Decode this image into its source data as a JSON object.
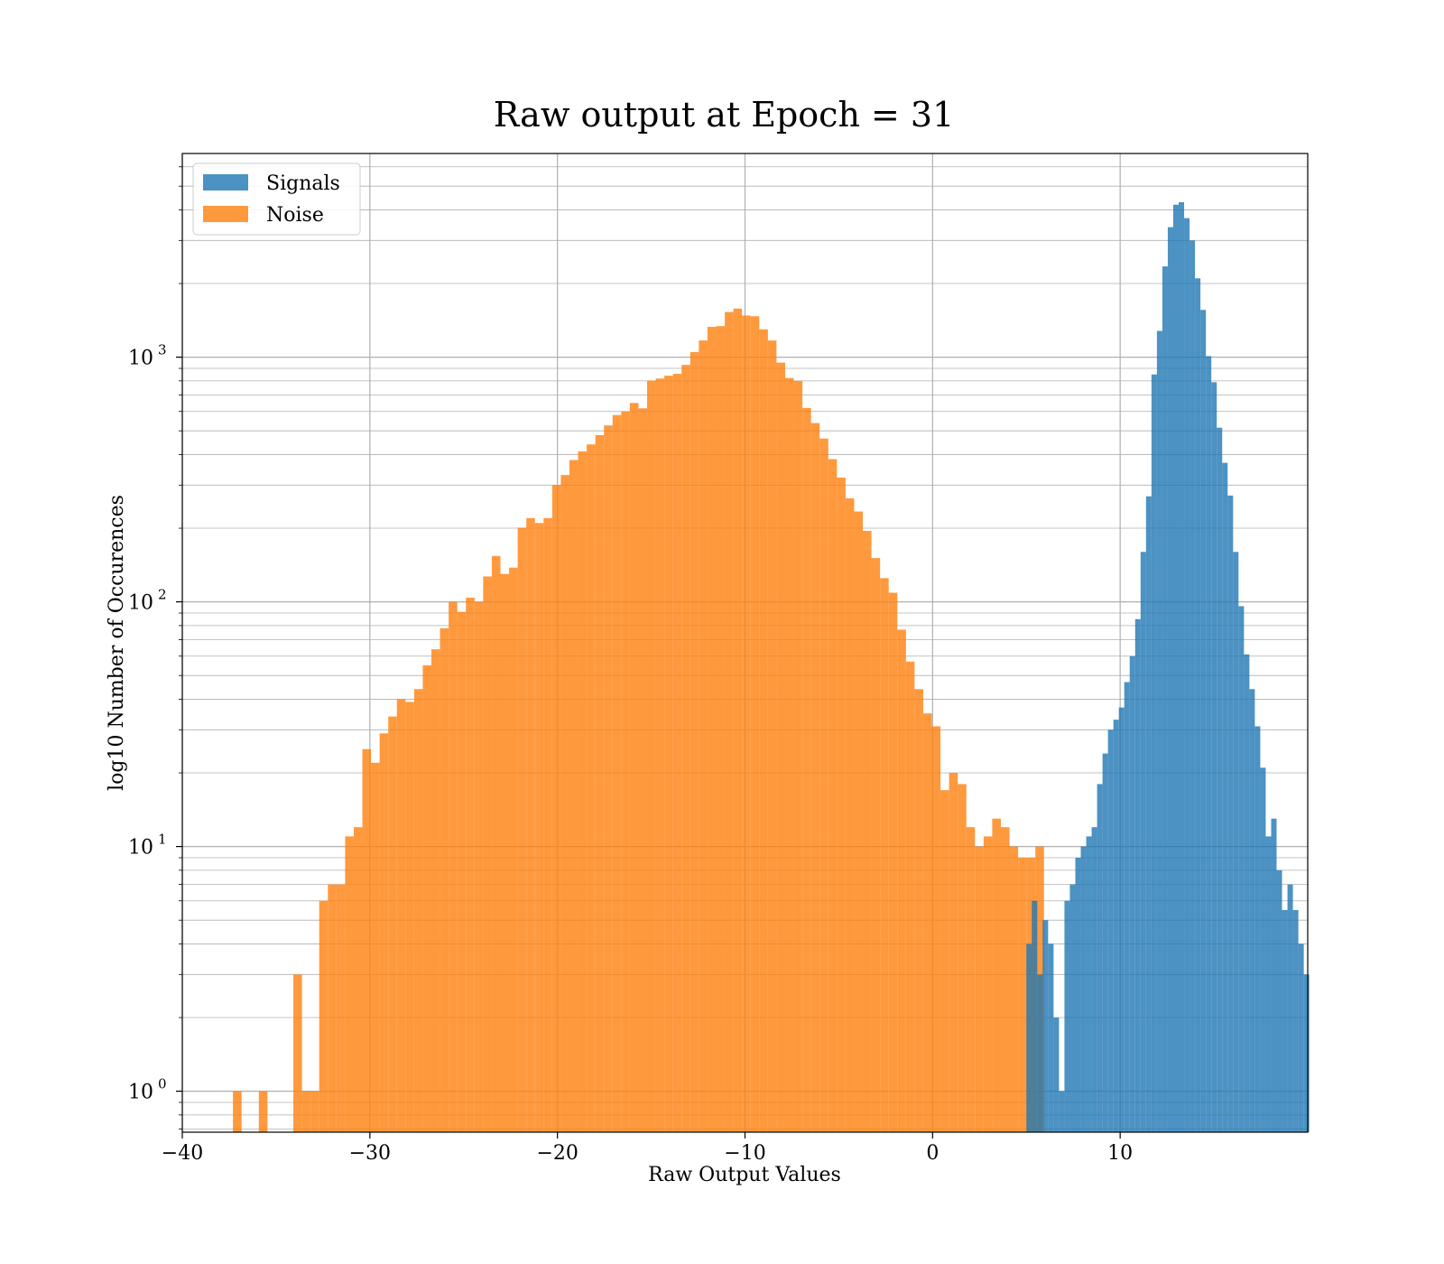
{
  "chart_data": {
    "type": "histogram",
    "title": "Raw output at Epoch = 31",
    "xlabel": "Raw Output Values",
    "ylabel": "log10 Number of Occurences",
    "xlim": [
      -40,
      20
    ],
    "ylim": [
      0.68,
      6800
    ],
    "yscale": "log",
    "grid": true,
    "legend_position": "top-left",
    "x_ticks": [
      -40,
      -30,
      -20,
      -10,
      0,
      10
    ],
    "x_tick_labels": [
      "−40",
      "−30",
      "−20",
      "−10",
      "0",
      "10"
    ],
    "y_ticks": [
      {
        "value": 1,
        "base": "10",
        "exp": "0"
      },
      {
        "value": 10,
        "base": "10",
        "exp": "1"
      },
      {
        "value": 100,
        "base": "10",
        "exp": "2"
      },
      {
        "value": 1000,
        "base": "10",
        "exp": "3"
      }
    ],
    "series": [
      {
        "name": "Noise",
        "color": "#ff7f0e",
        "opacity": 0.8,
        "bin_start": -37.3,
        "bin_width": 0.46,
        "counts": [
          1,
          0,
          0,
          1,
          0,
          0,
          0,
          3,
          1,
          1,
          6,
          7,
          7,
          11,
          12,
          25,
          22,
          29,
          34,
          40,
          39,
          44,
          55,
          64,
          78,
          100,
          91,
          104,
          100,
          127,
          154,
          130,
          138,
          201,
          220,
          210,
          220,
          300,
          330,
          380,
          412,
          440,
          480,
          526,
          580,
          600,
          650,
          618,
          803,
          818,
          840,
          855,
          930,
          1050,
          1170,
          1330,
          1340,
          1530,
          1580,
          1480,
          1470,
          1300,
          1170,
          950,
          822,
          800,
          620,
          538,
          465,
          383,
          322,
          265,
          234,
          195,
          151,
          125,
          109,
          77,
          57,
          44,
          35,
          31,
          17,
          20,
          18,
          12,
          10,
          11,
          13,
          12,
          10,
          9,
          9,
          10
        ]
      },
      {
        "name": "Signals",
        "color": "#1f77b4",
        "opacity": 0.8,
        "bin_start": 5.0,
        "bin_width": 0.29,
        "counts": [
          4,
          6,
          3,
          5,
          4,
          2,
          1,
          6,
          7,
          9,
          10,
          11,
          12,
          18,
          24,
          30,
          33,
          37,
          47,
          60,
          85,
          160,
          270,
          850,
          1280,
          2350,
          3400,
          4200,
          4300,
          3700,
          3000,
          2100,
          1560,
          1010,
          790,
          515,
          370,
          272,
          160,
          96,
          61,
          44,
          31,
          21,
          11,
          13,
          8,
          5.5,
          7,
          5.5,
          4,
          3
        ]
      }
    ]
  }
}
